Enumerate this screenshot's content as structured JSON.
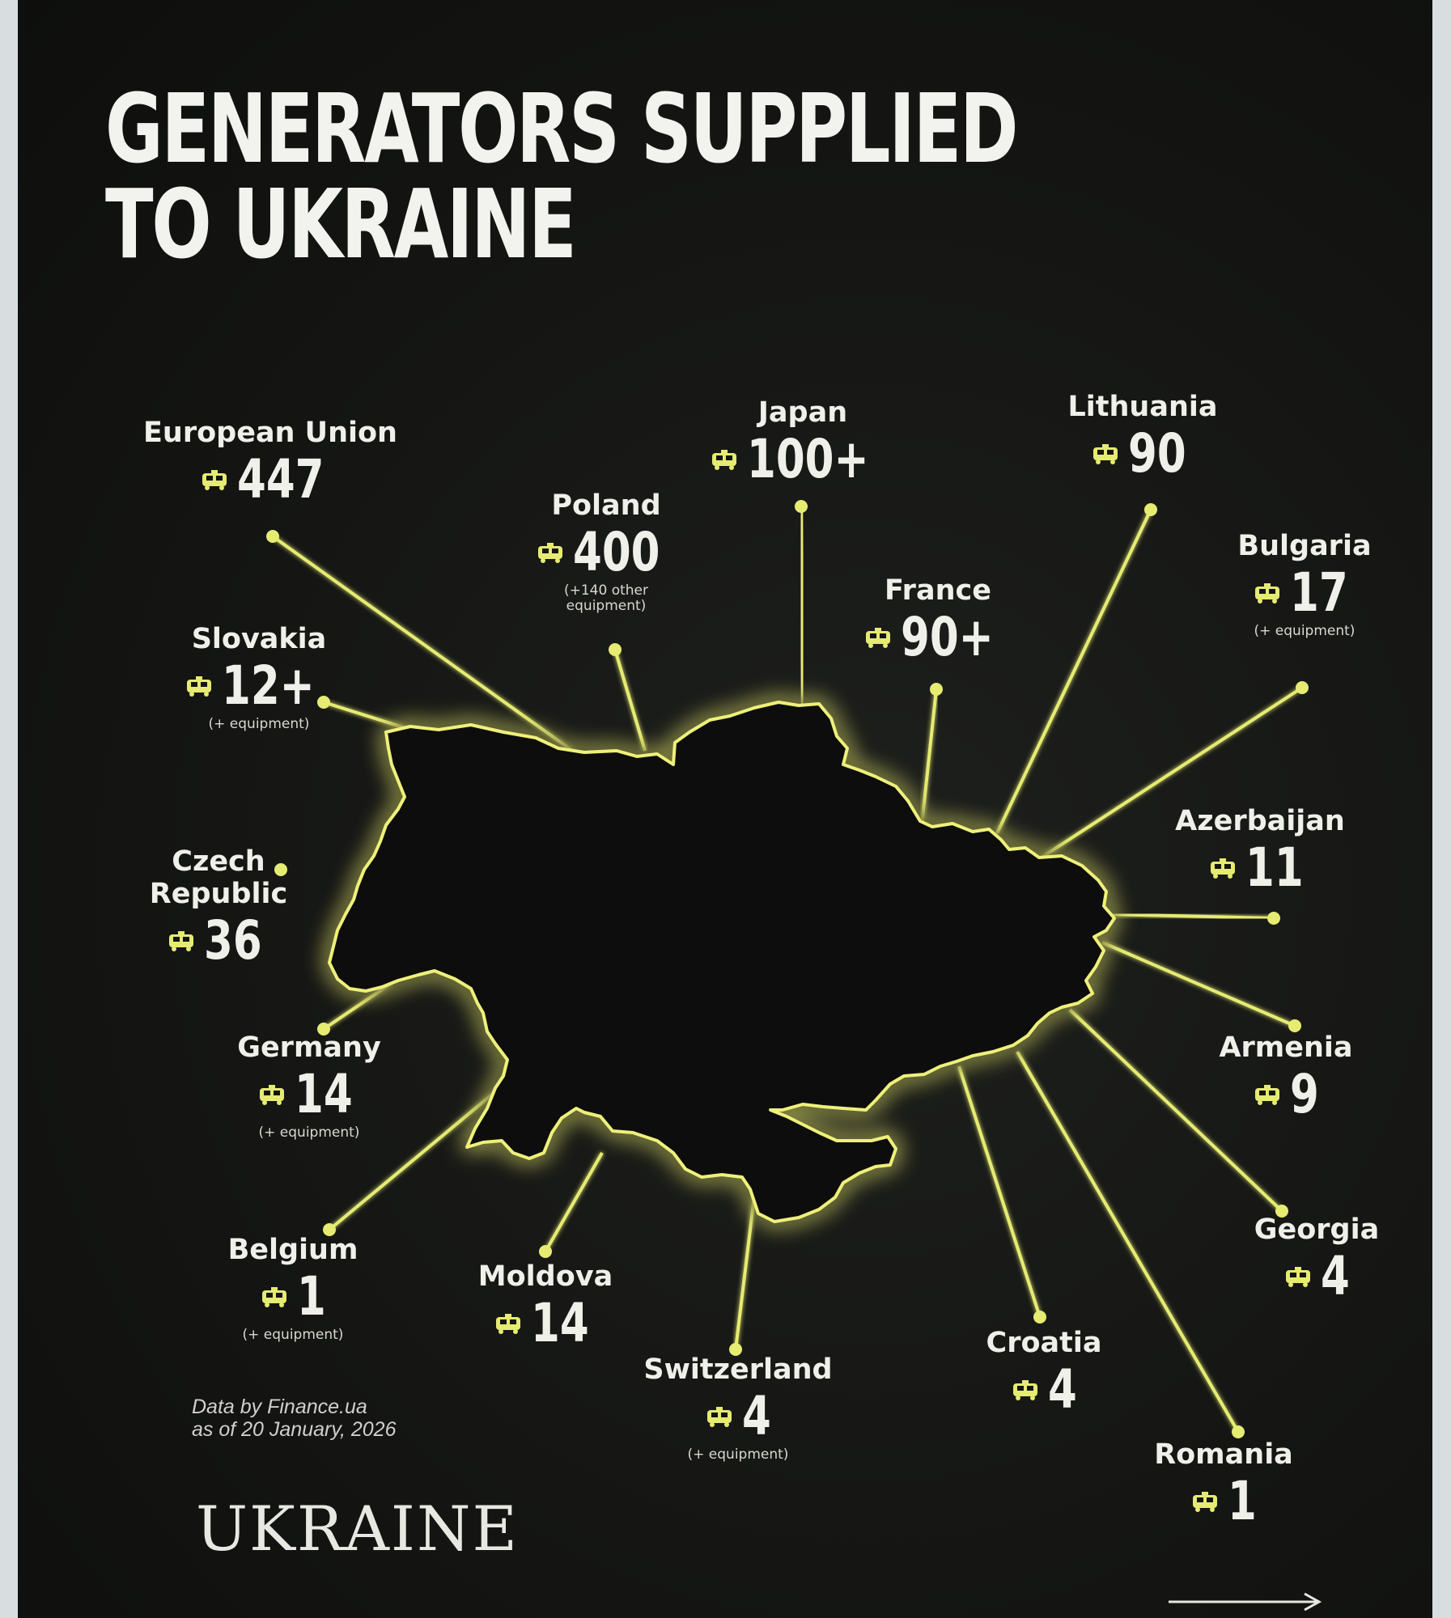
{
  "title_lines": [
    "GENERATORS SUPPLIED",
    "TO UKRAINE"
  ],
  "icon": "generator-icon",
  "accent": "#e6eb72",
  "countries": [
    {
      "id": "european-union",
      "name": "European Union",
      "value": "447",
      "note": ""
    },
    {
      "id": "poland",
      "name": "Poland",
      "value": "400",
      "note": "(+140 other\nequipment)"
    },
    {
      "id": "japan",
      "name": "Japan",
      "value": "100+",
      "note": ""
    },
    {
      "id": "lithuania",
      "name": "Lithuania",
      "value": "90",
      "note": ""
    },
    {
      "id": "bulgaria",
      "name": "Bulgaria",
      "value": "17",
      "note": "(+ equipment)"
    },
    {
      "id": "france",
      "name": "France",
      "value": "90+",
      "note": ""
    },
    {
      "id": "slovakia",
      "name": "Slovakia",
      "value": "12+",
      "note": "(+ equipment)"
    },
    {
      "id": "azerbaijan",
      "name": "Azerbaijan",
      "value": "11",
      "note": ""
    },
    {
      "id": "czech-republic",
      "name": "Czech\nRepublic",
      "value": "36",
      "note": ""
    },
    {
      "id": "germany",
      "name": "Germany",
      "value": "14",
      "note": "(+ equipment)"
    },
    {
      "id": "armenia",
      "name": "Armenia",
      "value": "9",
      "note": ""
    },
    {
      "id": "georgia",
      "name": "Georgia",
      "value": "4",
      "note": ""
    },
    {
      "id": "belgium",
      "name": "Belgium",
      "value": "1",
      "note": "(+ equipment)"
    },
    {
      "id": "moldova",
      "name": "Moldova",
      "value": "14",
      "note": ""
    },
    {
      "id": "switzerland",
      "name": "Switzerland",
      "value": "4",
      "note": "(+ equipment)"
    },
    {
      "id": "croatia",
      "name": "Croatia",
      "value": "4",
      "note": ""
    },
    {
      "id": "romania",
      "name": "Romania",
      "value": "1",
      "note": ""
    }
  ],
  "source": {
    "line1": "Data by Finance.ua",
    "line2": "as of 20 January, 2026"
  },
  "logo": "UKRAINE"
}
